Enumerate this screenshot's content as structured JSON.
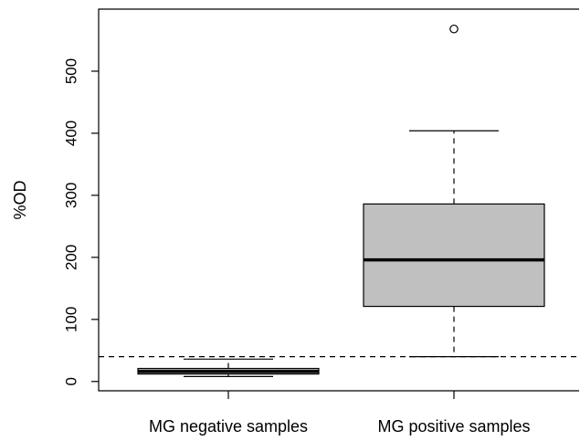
{
  "chart_data": {
    "type": "boxplot",
    "ylabel": "%OD",
    "xlabel": "",
    "ylim": [
      -15,
      600
    ],
    "y_ticks": [
      0,
      100,
      200,
      300,
      400,
      500
    ],
    "categories": [
      "MG negative samples",
      "MG positive samples"
    ],
    "boxes": [
      {
        "category": "MG negative samples",
        "whisker_low": 8,
        "q1": 12,
        "median": 16,
        "q3": 21,
        "whisker_high": 36,
        "outliers": []
      },
      {
        "category": "MG positive samples",
        "whisker_low": 40,
        "q1": 121,
        "median": 196,
        "q3": 286,
        "whisker_high": 404,
        "outliers": [
          568
        ]
      }
    ],
    "reference_line": {
      "y": 40,
      "style": "dashed"
    },
    "box_fill": "#c0c0c0",
    "line_color": "#000000",
    "grid": false,
    "legend": "none"
  }
}
